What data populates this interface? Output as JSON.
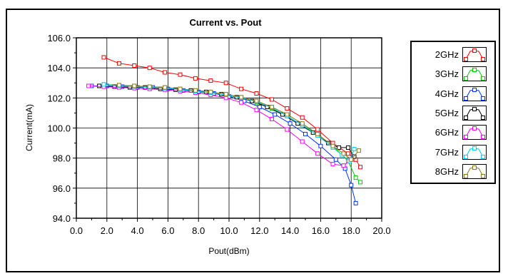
{
  "chart_data": {
    "type": "line",
    "title": "Current vs. Pout",
    "xlabel": "Pout(dBm)",
    "ylabel": "Current(mA)",
    "xlim": [
      0.0,
      20.0
    ],
    "ylim": [
      94.0,
      106.0
    ],
    "x_ticks": [
      "0.0",
      "2.0",
      "4.0",
      "6.0",
      "8.0",
      "10.0",
      "12.0",
      "14.0",
      "16.0",
      "18.0",
      "20.0"
    ],
    "y_ticks": [
      "94.0",
      "96.0",
      "98.0",
      "100.0",
      "102.0",
      "104.0",
      "106.0"
    ],
    "grid": true,
    "legend_position": "right",
    "series": [
      {
        "name": "2GHz",
        "color": "#ff0000",
        "x": [
          1.8,
          2.8,
          3.8,
          4.8,
          5.8,
          6.8,
          7.8,
          8.8,
          9.8,
          10.8,
          11.8,
          12.8,
          13.8,
          14.8,
          15.8,
          16.8,
          17.8,
          18.3,
          18.6
        ],
        "y": [
          104.7,
          104.3,
          104.15,
          104.0,
          103.7,
          103.55,
          103.3,
          103.15,
          103.0,
          102.6,
          102.3,
          101.9,
          101.3,
          100.7,
          99.9,
          99.0,
          98.3,
          97.9,
          97.4
        ]
      },
      {
        "name": "3GHz",
        "color": "#00cc00",
        "x": [
          1.8,
          2.8,
          3.8,
          4.8,
          5.8,
          6.8,
          7.8,
          8.8,
          9.8,
          10.8,
          11.8,
          12.8,
          13.8,
          14.8,
          15.8,
          16.8,
          17.8,
          18.3,
          18.6
        ],
        "y": [
          102.9,
          102.85,
          102.8,
          102.75,
          102.7,
          102.6,
          102.5,
          102.4,
          102.2,
          102.0,
          101.7,
          101.3,
          100.8,
          100.2,
          99.6,
          98.8,
          97.8,
          96.7,
          96.4
        ]
      },
      {
        "name": "4GHz",
        "color": "#0033ff",
        "x": [
          1.0,
          2.0,
          3.0,
          4.0,
          5.0,
          6.0,
          7.0,
          8.0,
          9.0,
          10.0,
          11.0,
          12.0,
          13.0,
          14.0,
          15.0,
          16.0,
          17.0,
          17.6,
          18.0,
          18.3
        ],
        "y": [
          102.8,
          102.8,
          102.75,
          102.7,
          102.7,
          102.6,
          102.5,
          102.4,
          102.3,
          102.1,
          101.8,
          101.4,
          100.9,
          100.3,
          99.6,
          98.8,
          97.9,
          97.3,
          96.2,
          95.0
        ]
      },
      {
        "name": "5GHz",
        "color": "#000000",
        "x": [
          1.5,
          2.5,
          3.5,
          4.5,
          5.5,
          6.5,
          7.5,
          8.5,
          9.5,
          10.5,
          11.5,
          12.5,
          13.5,
          14.5,
          15.5,
          16.5,
          17.2,
          17.8,
          18.2
        ],
        "y": [
          102.8,
          102.75,
          102.7,
          102.7,
          102.6,
          102.55,
          102.5,
          102.4,
          102.25,
          102.05,
          101.8,
          101.4,
          100.9,
          100.3,
          99.7,
          99.0,
          98.7,
          98.7,
          98.1
        ]
      },
      {
        "name": "6GHz",
        "color": "#ff00ff",
        "x": [
          0.8,
          1.8,
          2.8,
          3.8,
          4.8,
          5.8,
          6.8,
          7.8,
          8.8,
          9.8,
          10.8,
          11.8,
          12.8,
          13.8,
          14.8,
          15.8,
          16.8,
          17.5,
          18.0
        ],
        "y": [
          102.8,
          102.75,
          102.7,
          102.65,
          102.6,
          102.55,
          102.45,
          102.35,
          102.2,
          102.0,
          101.7,
          101.2,
          100.6,
          99.9,
          99.1,
          98.3,
          97.6,
          97.5,
          97.9
        ]
      },
      {
        "name": "7GHz",
        "color": "#00ccff",
        "x": [
          1.8,
          2.8,
          3.8,
          4.8,
          5.8,
          6.8,
          7.8,
          8.8,
          9.8,
          10.8,
          11.8,
          12.8,
          13.8,
          14.8,
          15.8,
          16.8,
          17.4,
          17.9,
          18.2
        ],
        "y": [
          102.9,
          102.8,
          102.75,
          102.7,
          102.65,
          102.55,
          102.45,
          102.35,
          102.2,
          102.0,
          101.75,
          101.35,
          100.8,
          100.2,
          99.5,
          98.7,
          98.2,
          97.8,
          98.6
        ]
      },
      {
        "name": "8GHz",
        "color": "#8a7a1a",
        "x": [
          2.8,
          3.8,
          4.8,
          5.8,
          6.8,
          7.8,
          8.8,
          9.8,
          10.8,
          11.8,
          12.8,
          13.8,
          14.8,
          15.8,
          16.8,
          17.5,
          18.0,
          18.5
        ],
        "y": [
          102.85,
          102.8,
          102.75,
          102.7,
          102.6,
          102.5,
          102.4,
          102.25,
          102.05,
          101.8,
          101.4,
          100.9,
          100.3,
          99.6,
          98.8,
          98.3,
          97.9,
          98.5
        ]
      }
    ]
  }
}
